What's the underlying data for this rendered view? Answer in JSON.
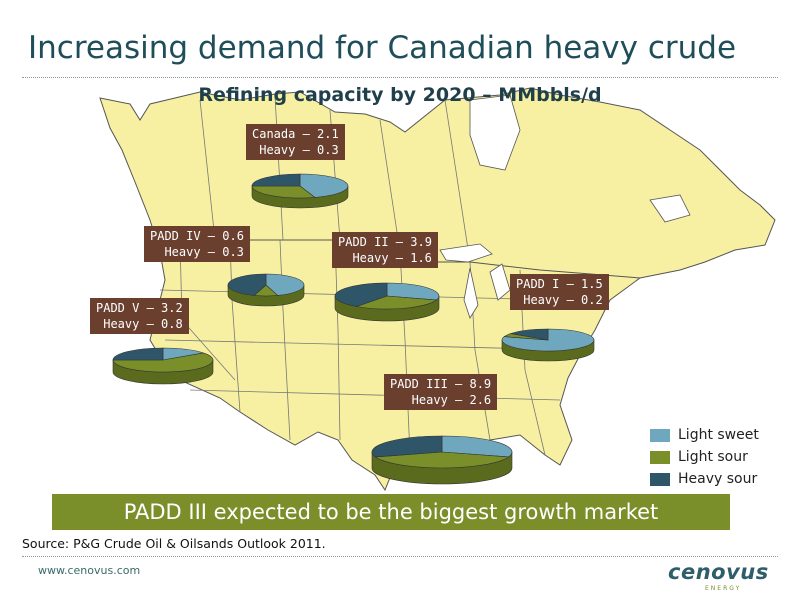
{
  "slide": {
    "title": "Increasing demand for Canadian heavy crude",
    "banner": "PADD III expected to be the biggest growth market",
    "source": "Source: P&G Crude Oil & Oilsands Outlook 2011.",
    "website": "www.cenovus.com",
    "logo_text": "cenovus",
    "logo_subtext": "ENERGY"
  },
  "colors": {
    "light_sweet": "#6fa8be",
    "light_sour": "#7a8f2a",
    "heavy_sour": "#2e5668",
    "map_fill": "#f7f0a2",
    "label_bg": "#6b3f2e",
    "banner_bg": "#7a8f2a",
    "title": "#1f4e5a"
  },
  "chart_data": {
    "type": "pie",
    "title": "Refining capacity by 2020 – MMbbls/d",
    "legend": [
      "Light sweet",
      "Light sour",
      "Heavy sour"
    ],
    "legend_position": "bottom-right",
    "regions": [
      {
        "label": "Canada – 2.1",
        "heavy_label": "Heavy – 0.3",
        "total": 2.1,
        "heavy": 0.3,
        "shares": {
          "light_sweet": 0.45,
          "light_sour": 0.3,
          "heavy_sour": 0.25
        }
      },
      {
        "label": "PADD IV – 0.6",
        "heavy_label": "Heavy – 0.3",
        "total": 0.6,
        "heavy": 0.3,
        "shares": {
          "light_sweet": 0.45,
          "light_sour": 0.1,
          "heavy_sour": 0.45
        }
      },
      {
        "label": "PADD II – 3.9",
        "heavy_label": "Heavy – 1.6",
        "total": 3.9,
        "heavy": 1.6,
        "shares": {
          "light_sweet": 0.3,
          "light_sour": 0.3,
          "heavy_sour": 0.4
        }
      },
      {
        "label": "PADD I – 1.5",
        "heavy_label": "Heavy – 0.2",
        "total": 1.5,
        "heavy": 0.2,
        "shares": {
          "light_sweet": 0.8,
          "light_sour": 0.05,
          "heavy_sour": 0.15
        }
      },
      {
        "label": "PADD V – 3.2",
        "heavy_label": "Heavy – 0.8",
        "total": 3.2,
        "heavy": 0.8,
        "shares": {
          "light_sweet": 0.15,
          "light_sour": 0.6,
          "heavy_sour": 0.25
        }
      },
      {
        "label": "PADD III – 8.9",
        "heavy_label": "Heavy – 2.6",
        "total": 8.9,
        "heavy": 2.6,
        "shares": {
          "light_sweet": 0.3,
          "light_sour": 0.4,
          "heavy_sour": 0.3
        }
      }
    ]
  }
}
